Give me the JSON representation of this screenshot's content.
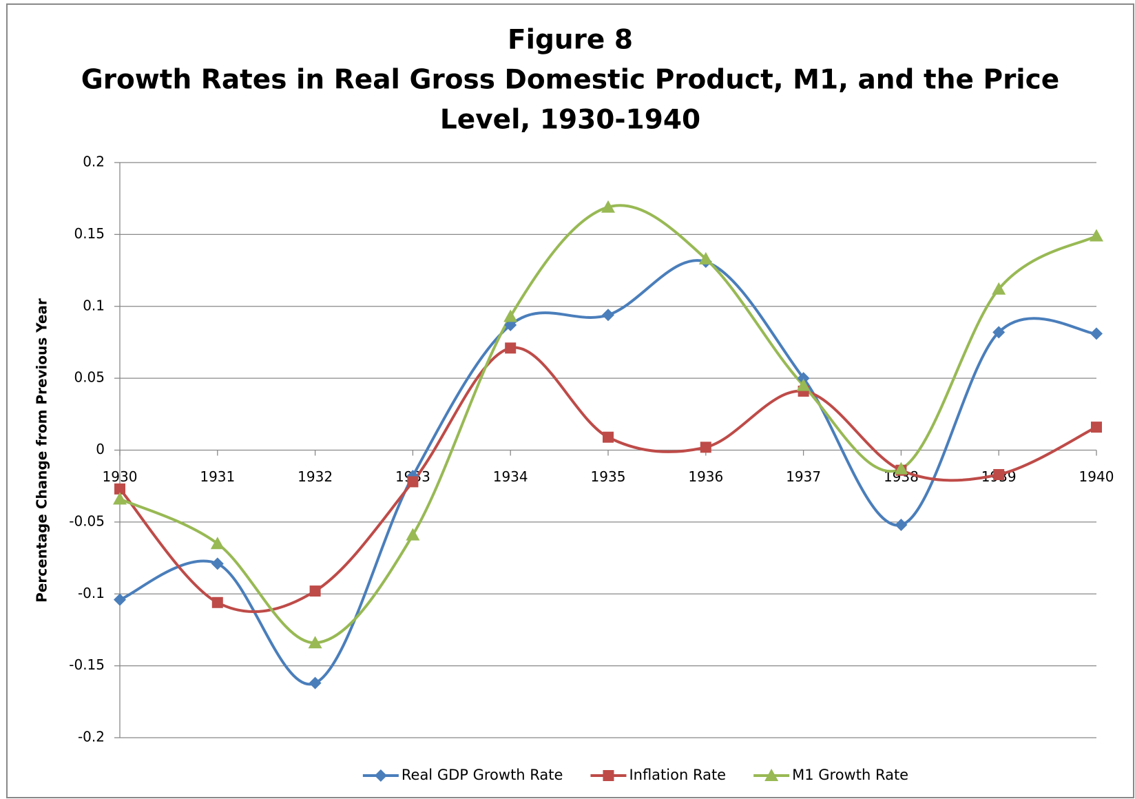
{
  "chart_data": {
    "type": "line",
    "title": [
      "Figure 8",
      "Growth Rates in Real Gross Domestic Product, M1, and the Price",
      "Level, 1930-1940"
    ],
    "y_label": "Percentage Change from Previous Year",
    "categories": [
      "1930",
      "1931",
      "1932",
      "1933",
      "1934",
      "1935",
      "1936",
      "1937",
      "1938",
      "1939",
      "1940"
    ],
    "series": [
      {
        "name": "Real GDP Growth Rate",
        "color": "#4a7ebb",
        "marker": "diamond",
        "values": [
          -0.104,
          -0.079,
          -0.162,
          -0.018,
          0.087,
          0.094,
          0.131,
          0.05,
          -0.052,
          0.082,
          0.081
        ]
      },
      {
        "name": "Inflation Rate",
        "color": "#be4b48",
        "marker": "square",
        "values": [
          -0.027,
          -0.106,
          -0.098,
          -0.022,
          0.071,
          0.009,
          0.002,
          0.041,
          -0.014,
          -0.017,
          0.016
        ]
      },
      {
        "name": "M1 Growth Rate",
        "color": "#98b954",
        "marker": "triangle",
        "values": [
          -0.034,
          -0.065,
          -0.134,
          -0.059,
          0.093,
          0.169,
          0.133,
          0.045,
          -0.013,
          0.112,
          0.149
        ]
      }
    ],
    "ylim": [
      -0.2,
      0.2
    ],
    "yticks": [
      -0.2,
      -0.15,
      -0.1,
      -0.05,
      0,
      0.05,
      0.1,
      0.15,
      0.2
    ],
    "grid": true,
    "smooth": true,
    "legend": "bottom"
  }
}
